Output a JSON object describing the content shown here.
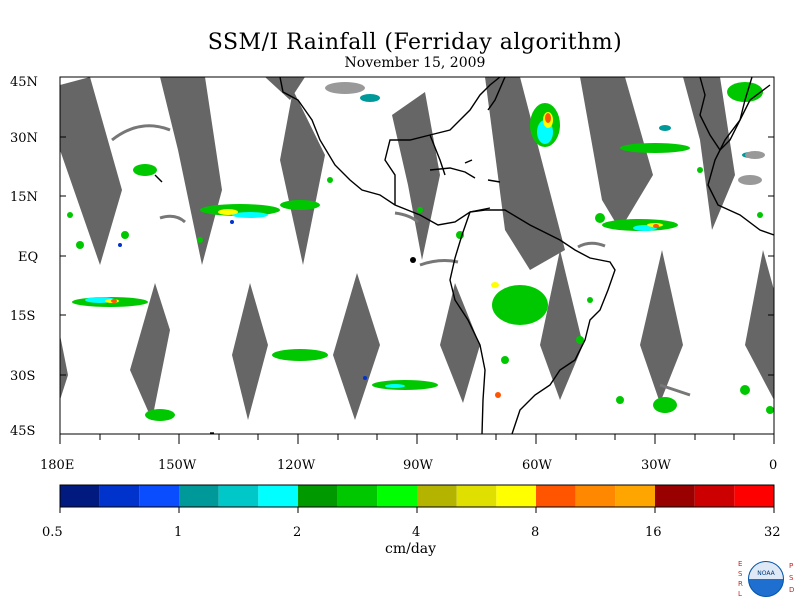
{
  "title": "SSM/I Rainfall (Ferriday algorithm)",
  "subtitle": "November 15, 2009",
  "lat_labels": [
    "45N",
    "30N",
    "15N",
    "EQ",
    "15S",
    "30S",
    "45S"
  ],
  "lon_labels": [
    "180E",
    "150W",
    "120W",
    "90W",
    "60W",
    "30W",
    "0"
  ],
  "colorbar": {
    "colors": [
      "#001a80",
      "#0033cc",
      "#0a4dff",
      "#00999a",
      "#00c8c8",
      "#00ffff",
      "#009900",
      "#00c800",
      "#00ff00",
      "#b3b300",
      "#e0e000",
      "#ffff00",
      "#ff5500",
      "#ff8800",
      "#ffa500",
      "#990000",
      "#cc0000",
      "#ff0000"
    ],
    "tick_labels": [
      "0.5",
      "1",
      "2",
      "4",
      "8",
      "16",
      "32"
    ]
  },
  "units": "cm/day",
  "logo": {
    "text": "NOAA",
    "side_left": [
      "E",
      "S",
      "R",
      "L"
    ],
    "side_right": [
      "P",
      "S",
      "D"
    ]
  }
}
